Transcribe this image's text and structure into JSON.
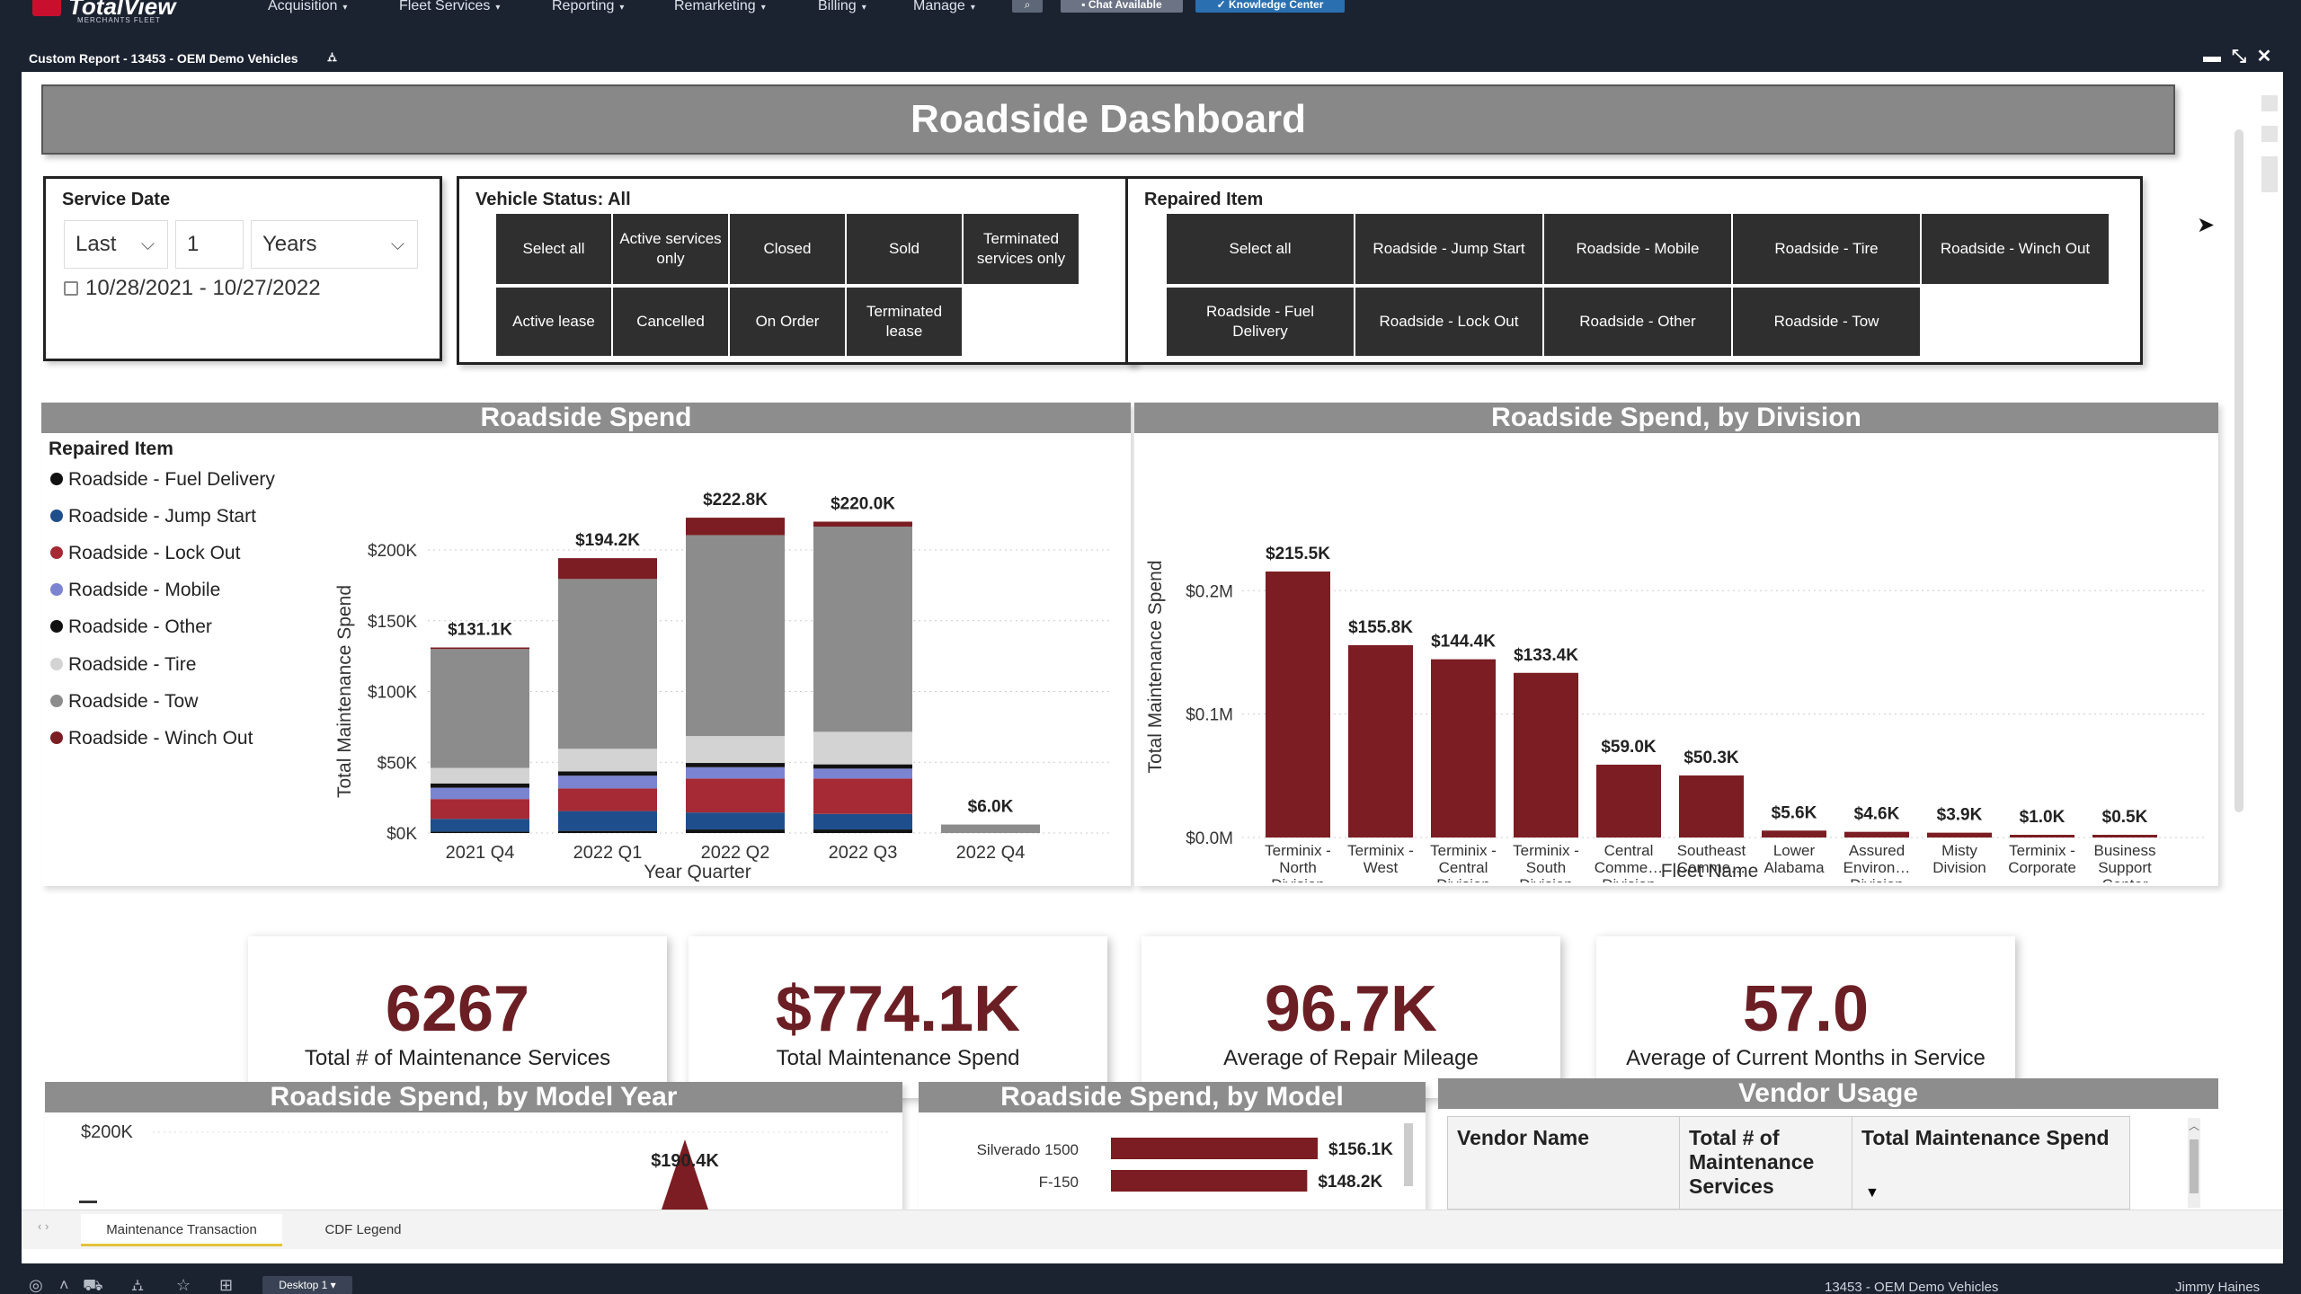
{
  "app": {
    "brand": "TotalView",
    "brand_sub": "MERCHANTS FLEET",
    "nav": [
      "Acquisition",
      "Fleet Services",
      "Reporting",
      "Remarketing",
      "Billing",
      "Manage"
    ],
    "chat_label": "Chat Available",
    "knowledge_label": "Knowledge Center",
    "window_title": "Custom Report - 13453 - OEM Demo Vehicles"
  },
  "dashboard": {
    "title": "Roadside Dashboard",
    "service_date": {
      "label": "Service Date",
      "relative": "Last",
      "count": "1",
      "unit": "Years",
      "range": "10/28/2021 - 10/27/2022"
    },
    "vehicle_status": {
      "label": "Vehicle Status: All",
      "buttons": [
        "Select all",
        "Active services only",
        "Closed",
        "Sold",
        "Terminated services only",
        "Active lease",
        "Cancelled",
        "On Order",
        "Terminated lease"
      ]
    },
    "repaired_item_filter": {
      "label": "Repaired Item",
      "buttons": [
        "Select all",
        "Roadside - Jump Start",
        "Roadside - Mobile",
        "Roadside - Tire",
        "Roadside - Winch Out",
        "Roadside - Fuel Delivery",
        "Roadside - Lock Out",
        "Roadside - Other",
        "Roadside - Tow"
      ]
    },
    "kpis": [
      {
        "value": "6267",
        "label": "Total # of Maintenance Services"
      },
      {
        "value": "$774.1K",
        "label": "Total Maintenance Spend"
      },
      {
        "value": "96.7K",
        "label": "Average of Repair Mileage"
      },
      {
        "value": "57.0",
        "label": "Average of Current Months in Service"
      }
    ],
    "sections": {
      "spend": "Roadside Spend",
      "by_division": "Roadside Spend, by Division",
      "by_model_year": "Roadside Spend, by Model Year",
      "by_model": "Roadside Spend, by Model",
      "vendor_usage": "Vendor Usage"
    },
    "vendor_table": {
      "columns": [
        "Vendor Name",
        "Total # of Maintenance Services",
        "Total Maintenance Spend"
      ]
    },
    "tabs": [
      "Maintenance Transaction",
      "CDF Legend"
    ]
  },
  "taskbar": {
    "desktop": "Desktop 1",
    "context": "13453 - OEM Demo Vehicles",
    "user": "Jimmy Haines"
  },
  "colors": {
    "accent": "#6b1f24",
    "bar": "#7b1d22",
    "panel_dark": "#2f2f2f",
    "header_gray": "#8d8d8d"
  },
  "chart_data": [
    {
      "type": "bar",
      "stacked": true,
      "title": "Roadside Spend",
      "xlabel": "Year Quarter",
      "ylabel": "Total Maintenance Spend",
      "legend_title": "Repaired Item",
      "legend_position": "left",
      "yticks": [
        "$0K",
        "$50K",
        "$100K",
        "$150K",
        "$200K"
      ],
      "ylim": [
        0,
        230000
      ],
      "categories": [
        "2021 Q4",
        "2022 Q1",
        "2022 Q2",
        "2022 Q3",
        "2022 Q4"
      ],
      "totals": [
        "$131.1K",
        "$194.2K",
        "$222.8K",
        "$220.0K",
        "$6.0K"
      ],
      "series": [
        {
          "name": "Roadside - Fuel Delivery",
          "color": "#111111",
          "values": [
            1000,
            1500,
            2500,
            2500,
            0
          ]
        },
        {
          "name": "Roadside - Jump Start",
          "color": "#1f4e8c",
          "values": [
            9000,
            14000,
            12000,
            11000,
            0
          ]
        },
        {
          "name": "Roadside - Lock Out",
          "color": "#a52a35",
          "values": [
            14000,
            16000,
            24000,
            25000,
            0
          ]
        },
        {
          "name": "Roadside - Mobile",
          "color": "#7b84d1",
          "values": [
            8000,
            9000,
            8000,
            7000,
            0
          ]
        },
        {
          "name": "Roadside - Other",
          "color": "#111111",
          "values": [
            3000,
            3000,
            3000,
            3000,
            0
          ]
        },
        {
          "name": "Roadside - Tire",
          "color": "#d3d3d3",
          "values": [
            11000,
            16000,
            19000,
            23000,
            0
          ]
        },
        {
          "name": "Roadside - Tow",
          "color": "#8c8c8c",
          "values": [
            84000,
            120000,
            142000,
            145000,
            6000
          ]
        },
        {
          "name": "Roadside - Winch Out",
          "color": "#7b1d22",
          "values": [
            1100,
            14700,
            12300,
            3500,
            0
          ]
        }
      ]
    },
    {
      "type": "bar",
      "title": "Roadside Spend, by Division",
      "xlabel": "Fleet Name",
      "ylabel": "Total Maintenance Spend",
      "yticks": [
        "$0.0M",
        "$0.1M",
        "$0.2M"
      ],
      "ylim": [
        0,
        230000
      ],
      "categories": [
        [
          "Terminix -",
          "North",
          "Division"
        ],
        [
          "Terminix -",
          "West"
        ],
        [
          "Terminix -",
          "Central",
          "Division"
        ],
        [
          "Terminix -",
          "South",
          "Division"
        ],
        [
          "Central",
          "Comme…",
          "Division"
        ],
        [
          "Southeast",
          "Comme…"
        ],
        [
          "Lower",
          "Alabama"
        ],
        [
          "Assured",
          "Environ…",
          "Division"
        ],
        [
          "Misty",
          "Division"
        ],
        [
          "Terminix -",
          "Corporate"
        ],
        [
          "Business",
          "Support",
          "Center"
        ]
      ],
      "values": [
        215500,
        155800,
        144400,
        133400,
        59000,
        50300,
        5600,
        4600,
        3900,
        1000,
        500
      ],
      "labels": [
        "$215.5K",
        "$155.8K",
        "$144.4K",
        "$133.4K",
        "$59.0K",
        "$50.3K",
        "$5.6K",
        "$4.6K",
        "$3.9K",
        "$1.0K",
        "$0.5K"
      ]
    },
    {
      "type": "line",
      "title": "Roadside Spend, by Model Year",
      "yticks": [
        "$200K"
      ],
      "peak_label": "$190.4K",
      "peak_value": 190400
    },
    {
      "type": "bar",
      "orientation": "horizontal",
      "title": "Roadside Spend, by Model",
      "categories": [
        "Silverado 1500",
        "F-150"
      ],
      "values": [
        156100,
        148200
      ],
      "labels": [
        "$156.1K",
        "$148.2K"
      ]
    }
  ]
}
